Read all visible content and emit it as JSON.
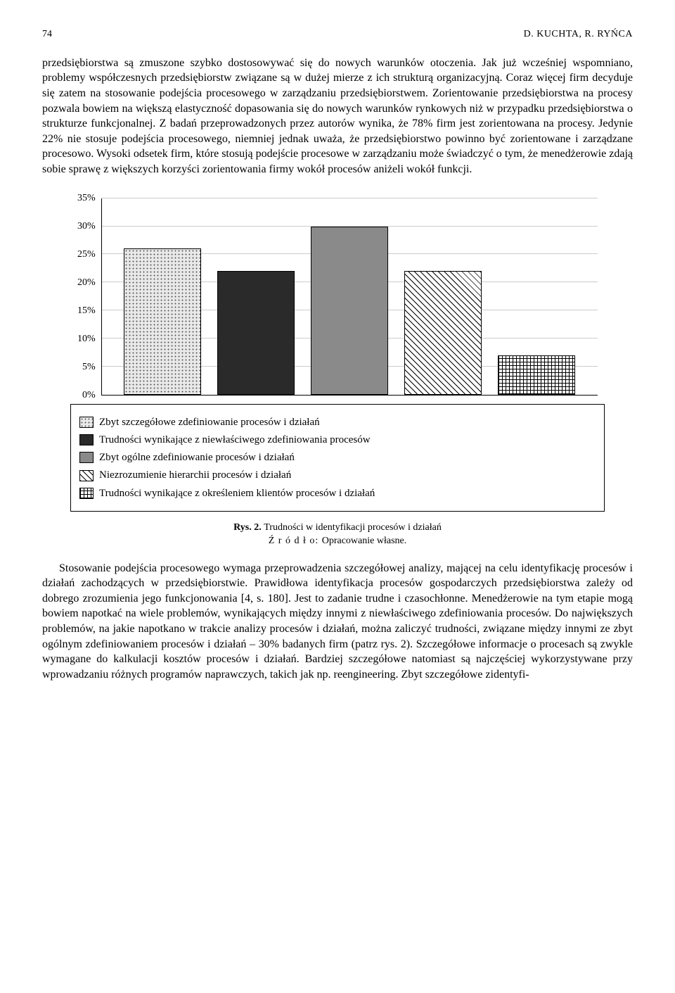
{
  "header": {
    "page": "74",
    "authors": "D. KUCHTA, R. RYŃCA"
  },
  "para1": "przedsiębiorstwa są zmuszone szybko dostosowywać się do nowych warunków otoczenia. Jak już wcześniej wspomniano, problemy współczesnych przedsiębiorstw związane są w dużej mierze z ich strukturą organizacyjną. Coraz więcej firm decyduje się zatem na stosowanie podejścia procesowego w zarządzaniu przedsiębiorstwem. Zorientowanie przedsiębiorstwa na procesy pozwala bowiem na większą elastyczność dopasowania się do nowych warunków rynkowych niż w przypadku przedsiębiorstwa o strukturze funkcjonalnej. Z badań przeprowadzonych przez autorów wynika, że 78% firm jest zorientowana na procesy. Jedynie 22% nie stosuje podejścia procesowego, niemniej jednak uważa, że przedsiębiorstwo powinno być zorientowane i zarządzane procesowo. Wysoki odsetek firm, które stosują podejście procesowe w zarządzaniu może świadczyć o tym, że menedżerowie zdają sobie sprawę z większych korzyści zorientowania firmy wokół procesów aniżeli wokół funkcji.",
  "chart": {
    "type": "bar",
    "ylim_max_pct": 35,
    "yticks": [
      "35%",
      "30%",
      "25%",
      "20%",
      "15%",
      "10%",
      "5%",
      "0%"
    ],
    "gridlines_pct": [
      5,
      10,
      15,
      20,
      25,
      30,
      35
    ],
    "bars": [
      {
        "value_pct": 26,
        "pattern": "pattern-dots-light",
        "label": "Zbyt szczegółowe zdefiniowanie procesów i działań"
      },
      {
        "value_pct": 22,
        "pattern": "pattern-solid-dark",
        "label": "Trudności wynikające z niewłaściwego zdefiniowania procesów"
      },
      {
        "value_pct": 30,
        "pattern": "pattern-solid-gray",
        "label": "Zbyt ogólne zdefiniowanie procesów i działań"
      },
      {
        "value_pct": 22,
        "pattern": "pattern-diag",
        "label": "Niezrozumienie hierarchii procesów i działań"
      },
      {
        "value_pct": 7,
        "pattern": "pattern-cross",
        "label": "Trudności wynikające z określeniem klientów procesów i działań"
      }
    ]
  },
  "caption": {
    "title": "Rys. 2. ",
    "text": "Trudności w identyfikacji procesów i działań",
    "source_label": "Ź r ó d ł o: ",
    "source_text": "Opracowanie własne."
  },
  "para2": "Stosowanie podejścia procesowego wymaga przeprowadzenia szczegółowej analizy, mającej na celu identyfikację procesów i działań zachodzących w przedsiębiorstwie. Prawidłowa identyfikacja procesów gospodarczych przedsiębiorstwa zależy od dobrego zrozumienia jego funkcjonowania [4, s. 180]. Jest to zadanie trudne i czasochłonne. Menedżerowie na tym etapie mogą bowiem napotkać na wiele problemów, wynikających między innymi z niewłaściwego zdefiniowania procesów. Do największych problemów, na jakie napotkano w trakcie analizy procesów i działań, można zaliczyć trudności, związane między innymi ze zbyt ogólnym zdefiniowaniem procesów i działań – 30% badanych firm (patrz rys. 2). Szczegółowe informacje o procesach są zwykle wymagane do kalkulacji kosztów procesów i działań. Bardziej szczegółowe natomiast są najczęściej wykorzystywane przy wprowadzaniu różnych programów naprawczych, takich jak np. reengineering. Zbyt szczegółowe zidentyfi-"
}
